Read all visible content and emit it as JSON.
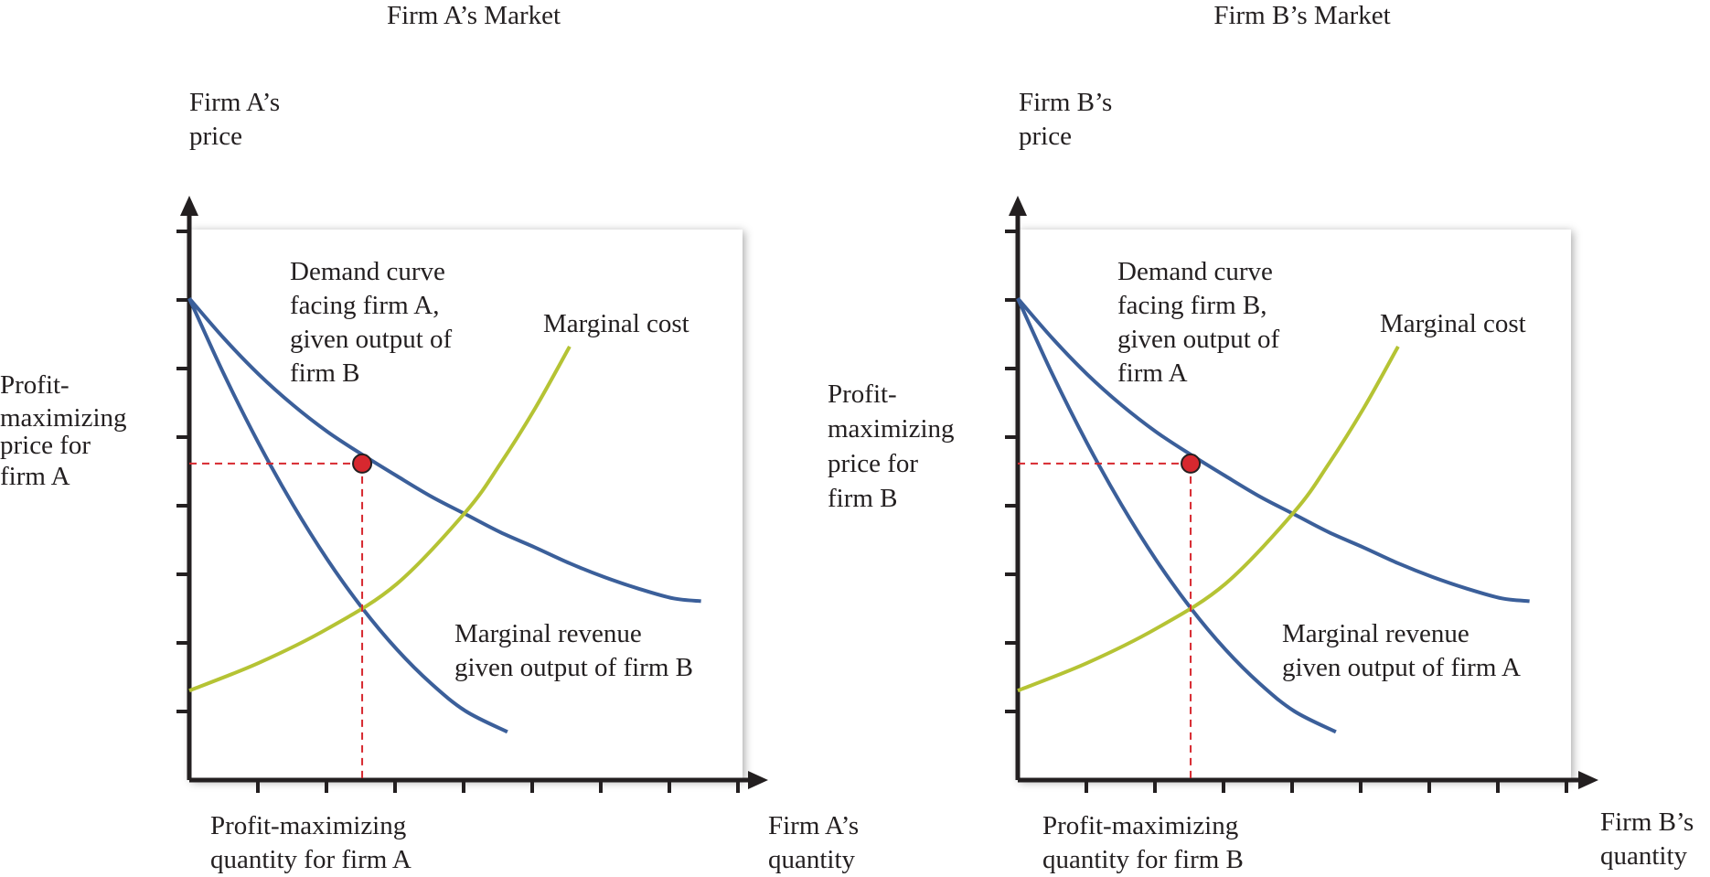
{
  "chart_data": [
    {
      "type": "line",
      "title": "Firm A’s Market",
      "ylabel": [
        "Firm A’s",
        "price"
      ],
      "xlabel": [
        "Firm A’s",
        "quantity"
      ],
      "grid": false,
      "xlim": [
        0,
        8
      ],
      "ylim": [
        0,
        8
      ],
      "series": [
        {
          "name": "Demand curve facing firm A, given output of firm B",
          "label_lines": [
            "Demand curve",
            "facing firm A,",
            "given output of",
            "firm B"
          ],
          "color": "#3b5f9a",
          "x": [
            0,
            0.5,
            1,
            1.5,
            2,
            2.5,
            3,
            3.5,
            4,
            4.5,
            5,
            5.5,
            6,
            6.5,
            7,
            7.4
          ],
          "y": [
            7.0,
            6.42,
            5.9,
            5.45,
            5.06,
            4.73,
            4.42,
            4.12,
            3.86,
            3.6,
            3.38,
            3.15,
            2.95,
            2.78,
            2.64,
            2.6
          ]
        },
        {
          "name": "Marginal revenue given output of firm B",
          "label_lines": [
            "Marginal revenue",
            "given output of firm B"
          ],
          "color": "#3b5f9a",
          "x": [
            0,
            0.5,
            1,
            1.5,
            2,
            2.5,
            3,
            3.5,
            4,
            4.6
          ],
          "y": [
            7.0,
            5.9,
            4.9,
            4.0,
            3.2,
            2.5,
            1.9,
            1.4,
            1.0,
            0.7
          ]
        },
        {
          "name": "Marginal cost",
          "label_lines": [
            "Marginal cost"
          ],
          "color": "#b5c334",
          "x": [
            0,
            1,
            2,
            3,
            4,
            4.5,
            5,
            5.5
          ],
          "y": [
            1.3,
            1.7,
            2.2,
            2.85,
            3.9,
            4.6,
            5.4,
            6.3
          ]
        }
      ],
      "equilibrium": {
        "x": 2.5,
        "y": 4.6,
        "color": "#d7282f"
      },
      "annotations": {
        "price": [
          "Profit-",
          "maximizing",
          "price for",
          "firm A"
        ],
        "quantity": [
          "Profit-maximizing",
          "quantity for firm A"
        ]
      }
    },
    {
      "type": "line",
      "title": "Firm B’s Market",
      "ylabel": [
        "Firm B’s",
        "price"
      ],
      "xlabel": [
        "Firm B’s",
        "quantity"
      ],
      "grid": false,
      "xlim": [
        0,
        8
      ],
      "ylim": [
        0,
        8
      ],
      "series": [
        {
          "name": "Demand curve facing firm B, given output of firm A",
          "label_lines": [
            "Demand curve",
            "facing firm B,",
            "given output of",
            "firm A"
          ],
          "color": "#3b5f9a",
          "x": [
            0,
            0.5,
            1,
            1.5,
            2,
            2.5,
            3,
            3.5,
            4,
            4.5,
            5,
            5.5,
            6,
            6.5,
            7,
            7.4
          ],
          "y": [
            7.0,
            6.42,
            5.9,
            5.45,
            5.06,
            4.73,
            4.42,
            4.12,
            3.86,
            3.6,
            3.38,
            3.15,
            2.95,
            2.78,
            2.64,
            2.6
          ]
        },
        {
          "name": "Marginal revenue given output of firm A",
          "label_lines": [
            "Marginal revenue",
            "given output of firm A"
          ],
          "color": "#3b5f9a",
          "x": [
            0,
            0.5,
            1,
            1.5,
            2,
            2.5,
            3,
            3.5,
            4,
            4.6
          ],
          "y": [
            7.0,
            5.9,
            4.9,
            4.0,
            3.2,
            2.5,
            1.9,
            1.4,
            1.0,
            0.7
          ]
        },
        {
          "name": "Marginal cost",
          "label_lines": [
            "Marginal cost"
          ],
          "color": "#b5c334",
          "x": [
            0,
            1,
            2,
            3,
            4,
            4.5,
            5,
            5.5
          ],
          "y": [
            1.3,
            1.7,
            2.2,
            2.85,
            3.9,
            4.6,
            5.4,
            6.3
          ]
        }
      ],
      "equilibrium": {
        "x": 2.5,
        "y": 4.6,
        "color": "#d7282f"
      },
      "annotations": {
        "price": [
          "Profit-",
          "maximizing",
          "price for",
          "firm B"
        ],
        "quantity": [
          "Profit-maximizing",
          "quantity for firm B"
        ]
      }
    }
  ]
}
